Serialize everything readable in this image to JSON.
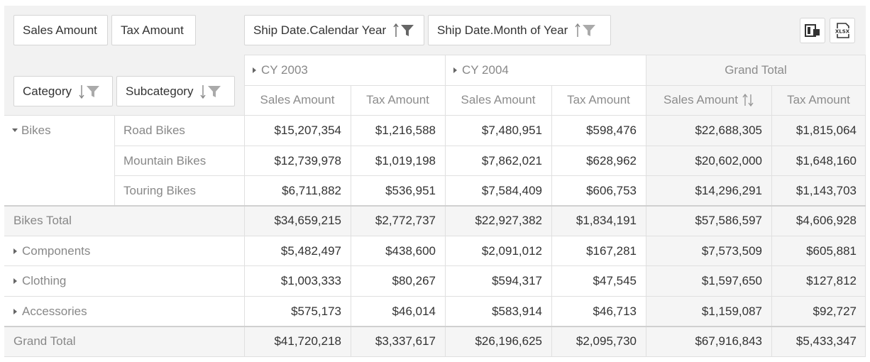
{
  "data_fields": {
    "sales_amount": "Sales Amount",
    "tax_amount": "Tax Amount"
  },
  "column_fields": {
    "calendar_year": "Ship Date.Calendar Year",
    "month_of_year": "Ship Date.Month of Year"
  },
  "row_fields": {
    "category": "Category",
    "subcategory": "Subcategory"
  },
  "toolbar": {
    "field_chooser_icon": "field-chooser-icon",
    "export_excel_icon": "export-excel-icon",
    "export_label": "XLSX"
  },
  "column_headers": {
    "year_2003": "CY 2003",
    "year_2004": "CY 2004",
    "grand_total": "Grand Total",
    "measures": [
      "Sales Amount",
      "Tax Amount",
      "Sales Amount",
      "Tax Amount",
      "Sales Amount",
      "Tax Amount"
    ]
  },
  "rows": [
    {
      "category": "Bikes",
      "subcategory": "Road Bikes",
      "values": [
        "$15,207,354",
        "$1,216,588",
        "$7,480,951",
        "$598,476",
        "$22,688,305",
        "$1,815,064"
      ]
    },
    {
      "category": "",
      "subcategory": "Mountain Bikes",
      "values": [
        "$12,739,978",
        "$1,019,198",
        "$7,862,021",
        "$628,962",
        "$20,602,000",
        "$1,648,160"
      ]
    },
    {
      "category": "",
      "subcategory": "Touring Bikes",
      "values": [
        "$6,711,882",
        "$536,951",
        "$7,584,409",
        "$606,753",
        "$14,296,291",
        "$1,143,703"
      ]
    },
    {
      "label": "Bikes Total",
      "values": [
        "$34,659,215",
        "$2,772,737",
        "$22,927,382",
        "$1,834,191",
        "$57,586,597",
        "$4,606,928"
      ]
    },
    {
      "label": "Components",
      "values": [
        "$5,482,497",
        "$438,600",
        "$2,091,012",
        "$167,281",
        "$7,573,509",
        "$605,881"
      ]
    },
    {
      "label": "Clothing",
      "values": [
        "$1,003,333",
        "$80,267",
        "$594,317",
        "$47,545",
        "$1,597,650",
        "$127,812"
      ]
    },
    {
      "label": "Accessories",
      "values": [
        "$575,173",
        "$46,014",
        "$583,914",
        "$46,713",
        "$1,159,087",
        "$92,727"
      ]
    },
    {
      "label": "Grand Total",
      "values": [
        "$41,720,218",
        "$3,337,617",
        "$26,196,625",
        "$2,095,730",
        "$67,916,843",
        "$5,433,347"
      ]
    }
  ],
  "colors": {
    "header_bg": "#f2f2f2",
    "grand_total_bg": "#f5f5f5",
    "border": "#e0e0e0",
    "text": "#333333",
    "muted_text": "#8c8c8c"
  }
}
